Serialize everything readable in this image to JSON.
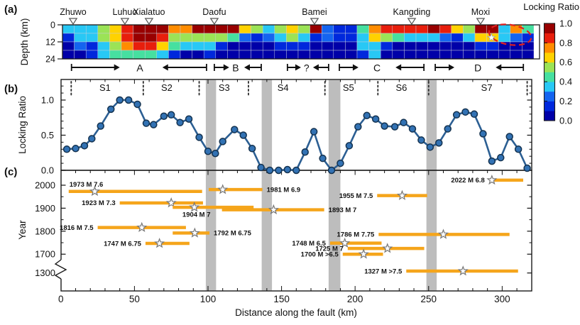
{
  "colors": {
    "bar_orange": "#F5A51B",
    "line_blue": "#2C5F93",
    "marker_blue": "#3272B4",
    "band_gray": "#BDBDBD",
    "ellipse_red": "#E02020",
    "box_stroke": "#1a1a1a"
  },
  "chart_data": [
    {
      "panel": "a",
      "type": "heatmap",
      "title_tag": "(a)",
      "ylabel": "Depth (km)",
      "depth_ticks": [
        "0",
        "12",
        "24"
      ],
      "depth_range_km": [
        0,
        24
      ],
      "x_km_range": [
        1.5,
        317
      ],
      "palette": {
        "nv": "#0000A8",
        "bl": "#0028DC",
        "db": "#1464F0",
        "cy": "#28C8F5",
        "sg": "#46E0A0",
        "lg": "#9BE356",
        "yl": "#FFD200",
        "or": "#FF8C00",
        "rd": "#E81E0C",
        "dr": "#990000"
      },
      "grid": [
        [
          "cy",
          "cy",
          "cy",
          "lg",
          "yl",
          "rd",
          "dr",
          "dr",
          "dr",
          "or",
          "or",
          "dr",
          "dr",
          "dr",
          "dr",
          "yl",
          "lg",
          "cy",
          "lg",
          "yl",
          "lg",
          "dr",
          "db",
          "bl",
          "bl",
          "sg",
          "or",
          "rd",
          "rd",
          "rd",
          "rd",
          "dr",
          "rd",
          "yl",
          "lg",
          "dr",
          "dr",
          "cy",
          "or",
          "sg"
        ],
        [
          "bl",
          "cy",
          "cy",
          "lg",
          "yl",
          "rd",
          "dr",
          "dr",
          "rd",
          "lg",
          "lg",
          "lg",
          "lg",
          "lg",
          "sg",
          "db",
          "bl",
          "db",
          "cy",
          "lg",
          "cy",
          "bl",
          "db",
          "bl",
          "bl",
          "cy",
          "yl",
          "lg",
          "sg",
          "cy",
          "cy",
          "cy",
          "db",
          "bl",
          "cy",
          "yl",
          "yl",
          "cy",
          "db",
          "bl"
        ],
        [
          "nv",
          "db",
          "bl",
          "cy",
          "lg",
          "or",
          "rd",
          "rd",
          "yl",
          "sg",
          "cy",
          "cy",
          "cy",
          "bl",
          "nv",
          "nv",
          "nv",
          "nv",
          "bl",
          "bl",
          "bl",
          "nv",
          "nv",
          "nv",
          "nv",
          "cy",
          "cy",
          "bl",
          "nv",
          "nv",
          "nv",
          "nv",
          "nv",
          "nv",
          "nv",
          "bl",
          "bl",
          "nv",
          "nv",
          "nv"
        ],
        [
          "nv",
          "nv",
          "bl",
          "cy",
          "sg",
          "sg",
          "sg",
          "sg",
          "cy",
          "bl",
          "nv",
          "nv",
          "bl",
          "nv",
          "nv",
          "nv",
          "nv",
          "nv",
          "nv",
          "nv",
          "nv",
          "nv",
          "nv",
          "nv",
          "nv",
          "bl",
          "cy",
          "nv",
          "nv",
          "nv",
          "nv",
          "nv",
          "nv",
          "nv",
          "nv",
          "nv",
          "nv",
          "nv",
          "nv",
          "nv"
        ]
      ],
      "cities": [
        {
          "name": "Zhuwo",
          "km": 8.3
        },
        {
          "name": "Luhuo",
          "km": 43.5
        },
        {
          "name": "Xialatuo",
          "km": 59.9
        },
        {
          "name": "Daofu",
          "km": 104.3
        },
        {
          "name": "Bamei",
          "km": 172.4
        },
        {
          "name": "Kangding",
          "km": 238.5
        },
        {
          "name": "Moxi",
          "km": 285.3
        }
      ],
      "rupture_arrows": [
        {
          "label": "A",
          "bar_left_km": 7.2,
          "head_left_km": 40,
          "label_km": 53.7,
          "head_right_km": 69,
          "bar_right_km": 99
        },
        {
          "label": "B",
          "bar_left_km": 104.3,
          "head_left_km": 114.4,
          "label_km": 118.8,
          "head_right_km": 124.6,
          "bar_right_km": 136.2
        },
        {
          "label": "?",
          "bar_left_km": 154,
          "head_left_km": 163.2,
          "label_km": 167,
          "head_right_km": 171.4,
          "bar_right_km": 182
        },
        {
          "label": "C",
          "bar_left_km": 189.3,
          "head_left_km": 202.3,
          "label_km": 214.9,
          "head_right_km": 227.5,
          "bar_right_km": 246.8
        },
        {
          "label": "D",
          "bar_left_km": 254.5,
          "head_left_km": 267.5,
          "label_km": 283.5,
          "head_right_km": 295.6,
          "bar_right_km": 314.4
        }
      ],
      "colorbar": {
        "title": "Locking Ratio",
        "tick_labels": [
          "1.0",
          "0.8",
          "0.6",
          "0.4",
          "0.2",
          "0.0"
        ],
        "colors_bottom_to_top": [
          "nv",
          "bl",
          "db",
          "cy",
          "sg",
          "lg",
          "yl",
          "or",
          "rd",
          "dr"
        ]
      },
      "highlight": {
        "star_km": 292,
        "star_depth_km": 9,
        "ellipse_center_km": 305,
        "ellipse_center_depth_km": 7
      }
    },
    {
      "panel": "b",
      "type": "line",
      "title_tag": "(b)",
      "ylabel": "Locking Ratio",
      "ytick_labels": [
        "1.0",
        "0.5",
        "0.0"
      ],
      "yticks": [
        1.0,
        0.5,
        0.0
      ],
      "ylim": [
        0,
        1.29
      ],
      "points": [
        [
          4,
          0.3
        ],
        [
          10,
          0.31
        ],
        [
          16,
          0.35
        ],
        [
          21,
          0.45
        ],
        [
          27,
          0.63
        ],
        [
          34,
          0.87
        ],
        [
          40,
          1.0
        ],
        [
          46,
          1.0
        ],
        [
          52,
          0.94
        ],
        [
          58,
          0.67
        ],
        [
          63,
          0.65
        ],
        [
          70,
          0.77
        ],
        [
          75,
          0.79
        ],
        [
          81,
          0.68
        ],
        [
          87,
          0.73
        ],
        [
          94,
          0.47
        ],
        [
          100,
          0.27
        ],
        [
          105,
          0.24
        ],
        [
          110,
          0.41
        ],
        [
          118,
          0.58
        ],
        [
          124,
          0.5
        ],
        [
          130,
          0.31
        ],
        [
          136,
          0.04
        ],
        [
          142,
          0.0
        ],
        [
          148,
          0.0
        ],
        [
          154,
          0.01
        ],
        [
          160,
          0.0
        ],
        [
          166,
          0.26
        ],
        [
          172,
          0.55
        ],
        [
          178,
          0.17
        ],
        [
          184,
          0.0
        ],
        [
          190,
          0.1
        ],
        [
          196,
          0.35
        ],
        [
          202,
          0.62
        ],
        [
          208,
          0.78
        ],
        [
          214,
          0.73
        ],
        [
          220,
          0.63
        ],
        [
          227,
          0.62
        ],
        [
          233,
          0.68
        ],
        [
          239,
          0.59
        ],
        [
          245,
          0.43
        ],
        [
          251,
          0.33
        ],
        [
          257,
          0.39
        ],
        [
          263,
          0.59
        ],
        [
          269,
          0.79
        ],
        [
          275,
          0.83
        ],
        [
          281,
          0.8
        ],
        [
          287,
          0.52
        ],
        [
          293,
          0.13
        ],
        [
          299,
          0.18
        ],
        [
          305,
          0.48
        ],
        [
          311,
          0.3
        ],
        [
          317,
          0.03
        ]
      ],
      "segment_labels": [
        {
          "label": "S1",
          "km": 30
        },
        {
          "label": "S2",
          "km": 72
        },
        {
          "label": "S3",
          "km": 111
        },
        {
          "label": "S4",
          "km": 151
        },
        {
          "label": "S5",
          "km": 195.5
        },
        {
          "label": "S6",
          "km": 231.5
        },
        {
          "label": "S7",
          "km": 289.5
        }
      ],
      "dotted_km": [
        7,
        56,
        94,
        127.5,
        179.5,
        215.5,
        250,
        317
      ],
      "band_km": [
        [
          98.5,
          105.5
        ],
        [
          136.5,
          143.5
        ],
        [
          182,
          190
        ],
        [
          248.5,
          255.5
        ]
      ]
    },
    {
      "panel": "c",
      "type": "timeline",
      "title_tag": "(c)",
      "ylabel": "Year",
      "year_ticks": [
        "2000",
        "1900",
        "1800",
        "1700",
        "1300"
      ],
      "year_tick_values": [
        2000,
        1900,
        1800,
        1700,
        1300
      ],
      "xlabel": "Distance along the fault (km)",
      "xtick_labels": [
        "0",
        "50",
        "100",
        "150",
        "200",
        "250",
        "300"
      ],
      "xticks": [
        0,
        50,
        100,
        150,
        200,
        250,
        300
      ],
      "xlim": [
        0,
        320
      ],
      "earthquakes": [
        {
          "label": "1973 M 7.6",
          "year": 1973,
          "km": [
            5.3,
            96
          ],
          "star_km": 23,
          "label_pos": "above-left"
        },
        {
          "label": "1981 M 6.9",
          "year": 1981,
          "km": [
            100.5,
            137
          ],
          "star_km": 110,
          "label_pos": "right"
        },
        {
          "label": "1923 M 7.3",
          "year": 1923,
          "km": [
            40,
            96.6
          ],
          "star_km": 75,
          "label_pos": "left"
        },
        {
          "label": "1904 M 7",
          "year": 1904,
          "km": [
            76,
            131
          ],
          "star_km": 90.7,
          "label_pos": "below-star"
        },
        {
          "label": "1893 M 7",
          "year": 1893,
          "km": [
            109.5,
            179
          ],
          "star_km": 144.6,
          "label_pos": "right"
        },
        {
          "label": "1816 M 7.5",
          "year": 1816,
          "km": [
            25,
            85
          ],
          "star_km": 55,
          "label_pos": "left"
        },
        {
          "label": "1792 M 6.75",
          "year": 1792,
          "km": [
            76,
            101
          ],
          "star_km": 91,
          "label_pos": "right"
        },
        {
          "label": "1747 M 6.75",
          "year": 1747,
          "km": [
            57.5,
            87.4
          ],
          "star_km": 67,
          "label_pos": "left"
        },
        {
          "label": "1955 M 7.5",
          "year": 1955,
          "km": [
            215,
            249
          ],
          "star_km": 232,
          "label_pos": "left"
        },
        {
          "label": "1786 M 7.75",
          "year": 1786,
          "km": [
            216,
            305
          ],
          "star_km": 260,
          "label_pos": "left"
        },
        {
          "label": "1748 M 6.5",
          "year": 1748,
          "km": [
            183,
            218
          ],
          "star_km": 193,
          "label_pos": "left"
        },
        {
          "label": "1725 M 7",
          "year": 1725,
          "km": [
            195,
            247
          ],
          "star_km": 222,
          "label_pos": "left"
        },
        {
          "label": "1700 M >6.5",
          "year": 1700,
          "km": [
            191.6,
            219
          ],
          "star_km": 205.8,
          "label_pos": "left"
        },
        {
          "label": "1327 M >7.5",
          "year": 1327,
          "km": [
            234.8,
            310.8
          ],
          "star_km": 273.4,
          "label_pos": "left"
        },
        {
          "label": "2022 M 6.8",
          "year": 2022,
          "km": [
            294.7,
            314.3
          ],
          "star_km": 293,
          "label_pos": "left"
        }
      ],
      "band_km": [
        [
          98.5,
          105.5
        ],
        [
          136.5,
          143.5
        ],
        [
          182,
          190
        ],
        [
          248.5,
          255.5
        ]
      ]
    }
  ]
}
